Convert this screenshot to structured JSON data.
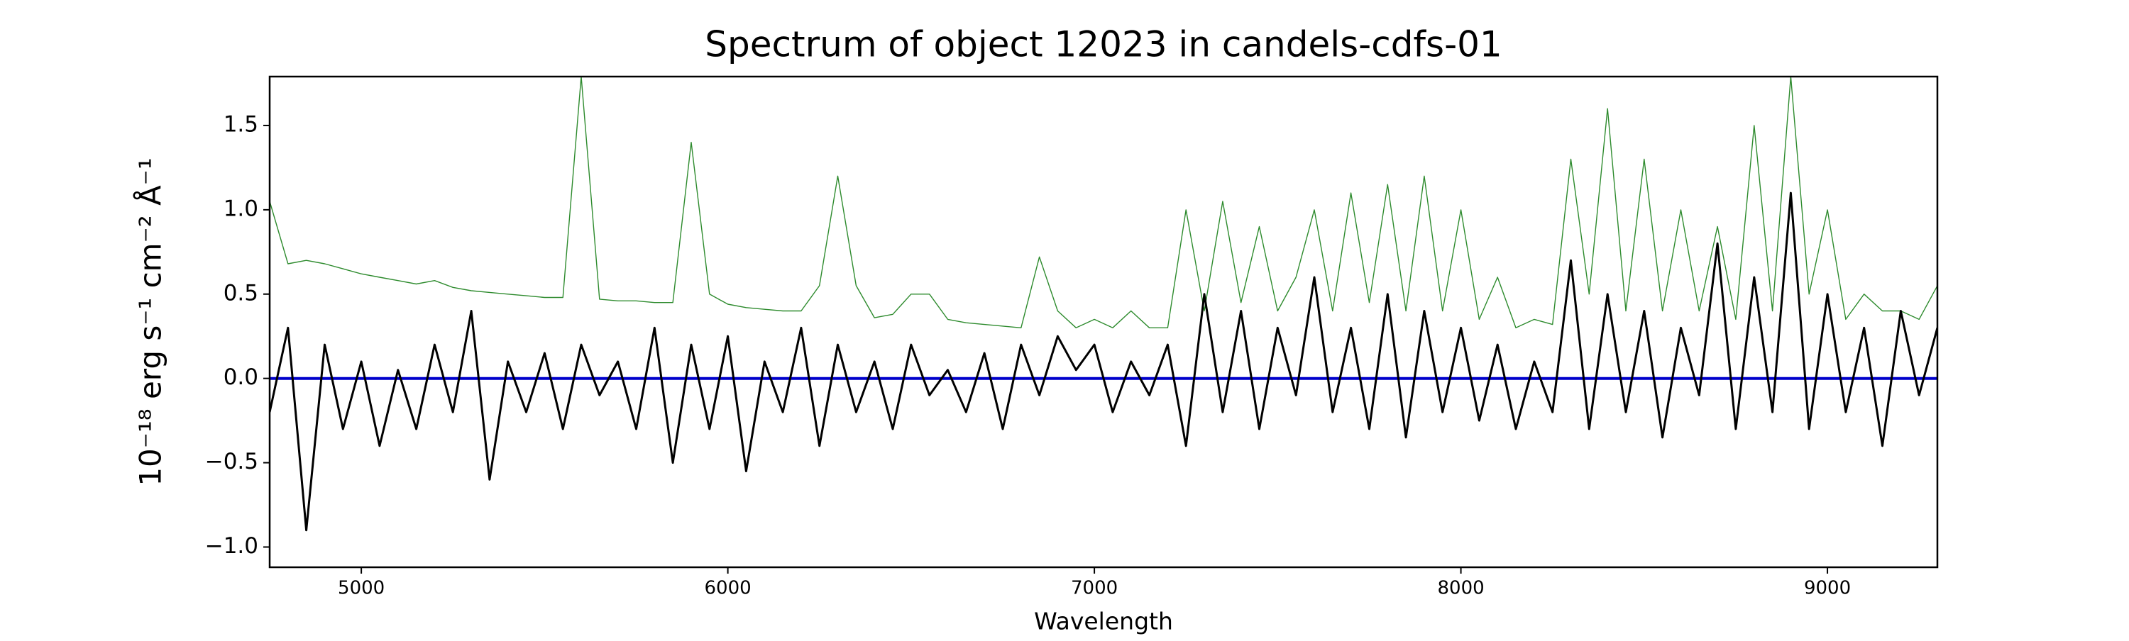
{
  "chart_data": {
    "type": "line",
    "title": "Spectrum of object 12023 in candels-cdfs-01",
    "xlabel": "Wavelength",
    "ylabel": "10⁻¹⁸ erg s⁻¹ cm⁻² Å⁻¹",
    "xlim": [
      4750,
      9300
    ],
    "ylim": [
      -1.12,
      1.79
    ],
    "xticks": [
      5000,
      6000,
      7000,
      8000,
      9000
    ],
    "yticks": [
      {
        "value": -1.0,
        "label": "−1.0"
      },
      {
        "value": -0.5,
        "label": "−0.5"
      },
      {
        "value": 0.0,
        "label": "0.0"
      },
      {
        "value": 0.5,
        "label": "0.5"
      },
      {
        "value": 1.0,
        "label": "1.0"
      },
      {
        "value": 1.5,
        "label": "1.5"
      }
    ],
    "grid": false,
    "x": [
      4750,
      4800,
      4850,
      4900,
      4950,
      5000,
      5050,
      5100,
      5150,
      5200,
      5250,
      5300,
      5350,
      5400,
      5450,
      5500,
      5550,
      5600,
      5650,
      5700,
      5750,
      5800,
      5850,
      5900,
      5950,
      6000,
      6050,
      6100,
      6150,
      6200,
      6250,
      6300,
      6350,
      6400,
      6450,
      6500,
      6550,
      6600,
      6650,
      6700,
      6750,
      6800,
      6850,
      6900,
      6950,
      7000,
      7050,
      7100,
      7150,
      7200,
      7250,
      7300,
      7350,
      7400,
      7450,
      7500,
      7550,
      7600,
      7650,
      7700,
      7750,
      7800,
      7850,
      7900,
      7950,
      8000,
      8050,
      8100,
      8150,
      8200,
      8250,
      8300,
      8350,
      8400,
      8450,
      8500,
      8550,
      8600,
      8650,
      8700,
      8750,
      8800,
      8850,
      8900,
      8950,
      9000,
      9050,
      9100,
      9150,
      9200,
      9250,
      9300
    ],
    "series": [
      {
        "color": "#2e8b2e",
        "width": 1.4,
        "values": [
          1.05,
          0.68,
          0.7,
          0.68,
          0.65,
          0.62,
          0.6,
          0.58,
          0.56,
          0.58,
          0.54,
          0.52,
          0.51,
          0.5,
          0.49,
          0.48,
          0.48,
          1.79,
          0.47,
          0.46,
          0.46,
          0.45,
          0.45,
          1.4,
          0.5,
          0.44,
          0.42,
          0.41,
          0.4,
          0.4,
          0.55,
          1.2,
          0.55,
          0.36,
          0.38,
          0.5,
          0.5,
          0.35,
          0.33,
          0.32,
          0.31,
          0.3,
          0.72,
          0.4,
          0.3,
          0.35,
          0.3,
          0.4,
          0.3,
          0.3,
          1.0,
          0.4,
          1.05,
          0.45,
          0.9,
          0.4,
          0.6,
          1.0,
          0.4,
          1.1,
          0.45,
          1.15,
          0.4,
          1.2,
          0.4,
          1.0,
          0.35,
          0.6,
          0.3,
          0.35,
          0.32,
          1.3,
          0.5,
          1.6,
          0.4,
          1.3,
          0.4,
          1.0,
          0.4,
          0.9,
          0.35,
          1.5,
          0.4,
          1.79,
          0.5,
          1.0,
          0.35,
          0.5,
          0.4,
          0.4,
          0.35,
          0.55
        ]
      },
      {
        "color": "#0000cc",
        "width": 4,
        "values": [
          0,
          0,
          0,
          0,
          0,
          0,
          0,
          0,
          0,
          0,
          0,
          0,
          0,
          0,
          0,
          0,
          0,
          0,
          0,
          0,
          0,
          0,
          0,
          0,
          0,
          0,
          0,
          0,
          0,
          0,
          0,
          0,
          0,
          0,
          0,
          0,
          0,
          0,
          0,
          0,
          0,
          0,
          0,
          0,
          0,
          0,
          0,
          0,
          0,
          0,
          0,
          0,
          0,
          0,
          0,
          0,
          0,
          0,
          0,
          0,
          0,
          0,
          0,
          0,
          0,
          0,
          0,
          0,
          0,
          0,
          0,
          0,
          0,
          0,
          0,
          0,
          0,
          0,
          0,
          0,
          0,
          0,
          0,
          0,
          0,
          0,
          0,
          0,
          0,
          0,
          0,
          0
        ]
      },
      {
        "color": "#000000",
        "width": 3,
        "values": [
          -0.2,
          0.3,
          -0.9,
          0.2,
          -0.3,
          0.1,
          -0.4,
          0.05,
          -0.3,
          0.2,
          -0.2,
          0.4,
          -0.6,
          0.1,
          -0.2,
          0.15,
          -0.3,
          0.2,
          -0.1,
          0.1,
          -0.3,
          0.3,
          -0.5,
          0.2,
          -0.3,
          0.25,
          -0.55,
          0.1,
          -0.2,
          0.3,
          -0.4,
          0.2,
          -0.2,
          0.1,
          -0.3,
          0.2,
          -0.1,
          0.05,
          -0.2,
          0.15,
          -0.3,
          0.2,
          -0.1,
          0.25,
          0.05,
          0.2,
          -0.2,
          0.1,
          -0.1,
          0.2,
          -0.4,
          0.5,
          -0.2,
          0.4,
          -0.3,
          0.3,
          -0.1,
          0.6,
          -0.2,
          0.3,
          -0.3,
          0.5,
          -0.35,
          0.4,
          -0.2,
          0.3,
          -0.25,
          0.2,
          -0.3,
          0.1,
          -0.2,
          0.7,
          -0.3,
          0.5,
          -0.2,
          0.4,
          -0.35,
          0.3,
          -0.1,
          0.8,
          -0.3,
          0.6,
          -0.2,
          1.1,
          -0.3,
          0.5,
          -0.2,
          0.3,
          -0.4,
          0.4,
          -0.1,
          0.3
        ]
      }
    ]
  }
}
